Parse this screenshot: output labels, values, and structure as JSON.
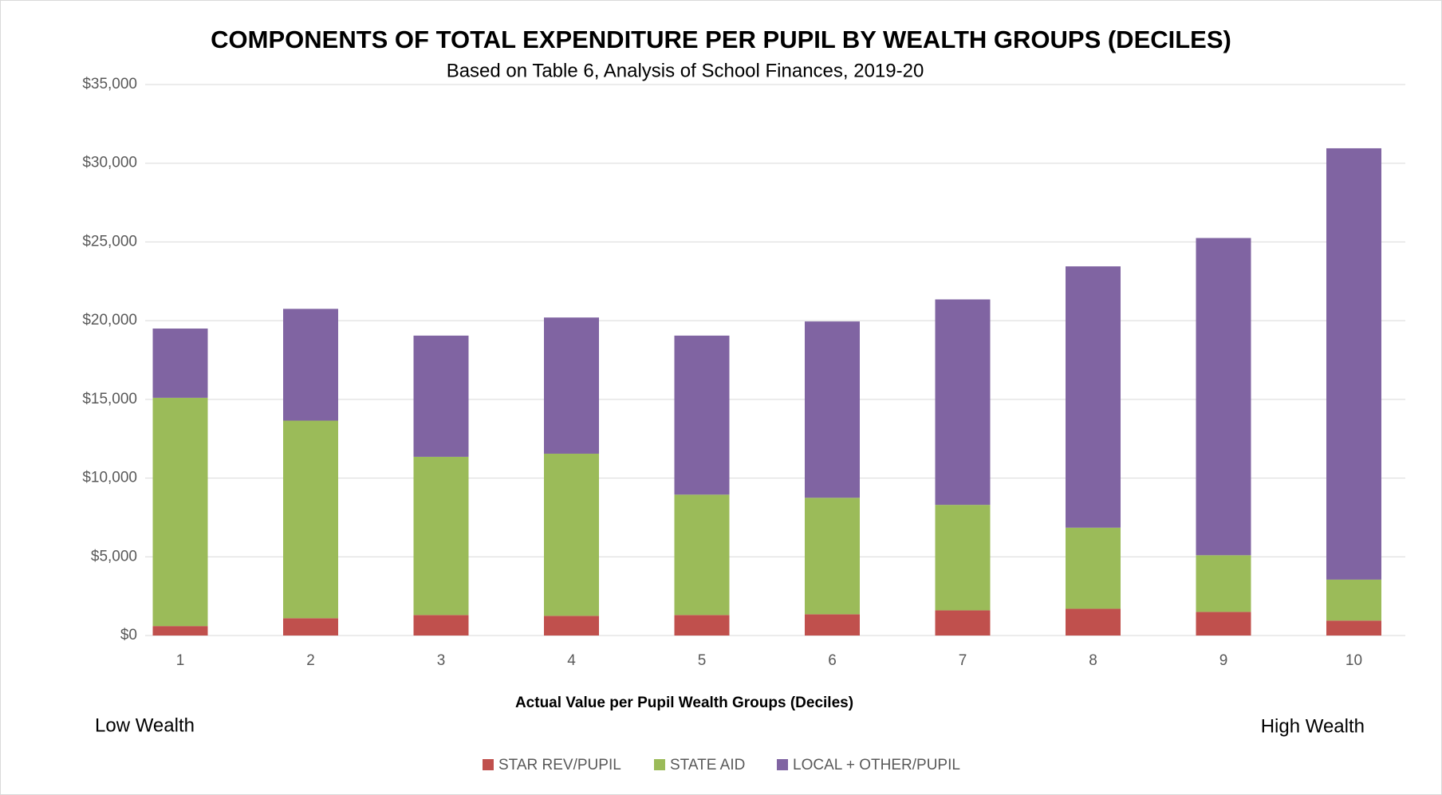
{
  "chart_data": {
    "type": "stacked_bar",
    "title": "COMPONENTS OF TOTAL EXPENDITURE PER PUPIL BY WEALTH GROUPS (DECILES)",
    "subtitle": "Based on Table 6, Analysis of School Finances, 2019-20",
    "x_label": "Actual Value per Pupil Wealth Groups (Deciles)",
    "annotations": [
      "Low Wealth",
      "High Wealth"
    ],
    "categories": [
      "1",
      "2",
      "3",
      "4",
      "5",
      "6",
      "7",
      "8",
      "9",
      "10"
    ],
    "series": [
      {
        "name": "STAR REV/PUPIL",
        "color": "#c0504d",
        "values": [
          600,
          1100,
          1300,
          1250,
          1300,
          1350,
          1600,
          1700,
          1500,
          950
        ]
      },
      {
        "name": "STATE AID",
        "color": "#9bbb59",
        "values": [
          14500,
          12550,
          10050,
          10300,
          7650,
          7400,
          6700,
          5150,
          3600,
          2600
        ]
      },
      {
        "name": "LOCAL + OTHER/PUPIL",
        "color": "#8064a2",
        "values": [
          4400,
          7100,
          7700,
          8650,
          10100,
          11200,
          13050,
          16600,
          20150,
          27400
        ]
      }
    ],
    "ylim": [
      0,
      35000
    ],
    "yticks": [
      {
        "value": 0,
        "label": "$0"
      },
      {
        "value": 5000,
        "label": "$5,000"
      },
      {
        "value": 10000,
        "label": "$10,000"
      },
      {
        "value": 15000,
        "label": "$15,000"
      },
      {
        "value": 20000,
        "label": "$20,000"
      },
      {
        "value": 25000,
        "label": "$25,000"
      },
      {
        "value": 30000,
        "label": "$30,000"
      },
      {
        "value": 35000,
        "label": "$35,000"
      }
    ],
    "grid": true,
    "legend": "bottom"
  }
}
